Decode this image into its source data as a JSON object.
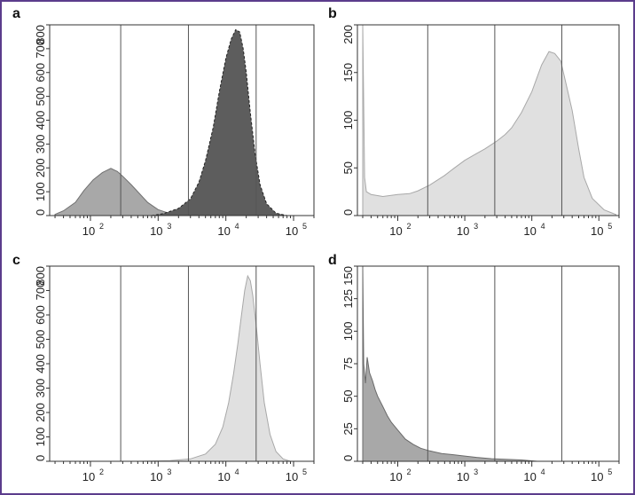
{
  "figure": {
    "frame_color": "#5b3c8c"
  },
  "chart_data": [
    {
      "panel": "a",
      "type": "area",
      "xscale": "log",
      "xlim": [
        25,
        200000
      ],
      "ylim": [
        0,
        800
      ],
      "yticks": [
        0,
        100,
        200,
        300,
        400,
        500,
        600,
        700,
        800
      ],
      "xticks": [
        100,
        1000,
        10000,
        100000
      ],
      "xtick_labels": [
        "10",
        "10",
        "10",
        "10"
      ],
      "xtick_exponents": [
        "2",
        "3",
        "4",
        "5"
      ],
      "gates": [
        280,
        2800,
        28000
      ],
      "series": [
        {
          "fill": "#a8a8a8",
          "stroke": "#707070",
          "dashed": false,
          "x": [
            30,
            40,
            60,
            80,
            110,
            150,
            200,
            250,
            300,
            400,
            500,
            700,
            1000,
            1500,
            2000,
            3000
          ],
          "y": [
            5,
            20,
            55,
            105,
            150,
            180,
            198,
            185,
            165,
            130,
            100,
            55,
            25,
            8,
            3,
            0
          ]
        },
        {
          "fill": "#5d5d5d",
          "stroke": "#222222",
          "dashed": true,
          "x": [
            800,
            1200,
            2000,
            3000,
            4000,
            5000,
            6500,
            8000,
            10000,
            12000,
            14000,
            16000,
            18000,
            20000,
            23000,
            27000,
            32000,
            40000,
            55000,
            80000
          ],
          "y": [
            0,
            8,
            30,
            70,
            140,
            230,
            370,
            520,
            660,
            740,
            780,
            770,
            700,
            600,
            430,
            260,
            130,
            50,
            10,
            0
          ]
        }
      ]
    },
    {
      "panel": "b",
      "type": "area",
      "xscale": "log",
      "xlim": [
        25,
        200000
      ],
      "ylim": [
        0,
        200
      ],
      "yticks": [
        0,
        50,
        100,
        150,
        200
      ],
      "xticks": [
        100,
        1000,
        10000,
        100000
      ],
      "xtick_labels": [
        "10",
        "10",
        "10",
        "10"
      ],
      "xtick_exponents": [
        "2",
        "3",
        "4",
        "5"
      ],
      "gates": [
        280,
        2800,
        28000
      ],
      "series": [
        {
          "fill": "#e0e0e0",
          "stroke": "#a8a8a8",
          "dashed": false,
          "x": [
            30,
            32,
            34,
            40,
            60,
            100,
            150,
            200,
            300,
            500,
            700,
            1000,
            1500,
            2000,
            3000,
            4000,
            5000,
            7000,
            10000,
            14000,
            18000,
            22000,
            27000,
            32000,
            40000,
            50000,
            60000,
            80000,
            120000,
            180000
          ],
          "y": [
            200,
            40,
            25,
            22,
            20,
            22,
            23,
            26,
            32,
            42,
            50,
            58,
            65,
            70,
            78,
            85,
            92,
            108,
            130,
            158,
            172,
            170,
            162,
            140,
            110,
            70,
            40,
            18,
            6,
            1
          ]
        }
      ]
    },
    {
      "panel": "c",
      "type": "area",
      "xscale": "log",
      "xlim": [
        25,
        200000
      ],
      "ylim": [
        0,
        800
      ],
      "yticks": [
        0,
        100,
        200,
        300,
        400,
        500,
        600,
        700,
        800
      ],
      "xticks": [
        100,
        1000,
        10000,
        100000
      ],
      "xtick_labels": [
        "10",
        "10",
        "10",
        "10"
      ],
      "xtick_exponents": [
        "2",
        "3",
        "4",
        "5"
      ],
      "gates": [
        280,
        2800,
        28000
      ],
      "series": [
        {
          "fill": "#e0e0e0",
          "stroke": "#a8a8a8",
          "dashed": false,
          "x": [
            500,
            1500,
            3000,
            5000,
            7000,
            9000,
            11000,
            13000,
            15000,
            17000,
            19000,
            21000,
            23000,
            25000,
            28000,
            32000,
            37000,
            45000,
            55000,
            70000,
            90000
          ],
          "y": [
            0,
            3,
            10,
            30,
            70,
            140,
            240,
            360,
            480,
            600,
            700,
            760,
            740,
            680,
            560,
            400,
            240,
            110,
            40,
            10,
            0
          ]
        }
      ]
    },
    {
      "panel": "d",
      "type": "area",
      "xscale": "log",
      "xlim": [
        25,
        200000
      ],
      "ylim": [
        0,
        150
      ],
      "yticks": [
        0,
        25,
        50,
        75,
        100,
        125,
        150
      ],
      "xticks": [
        100,
        1000,
        10000,
        100000
      ],
      "xtick_labels": [
        "10",
        "10",
        "10",
        "10"
      ],
      "xtick_exponents": [
        "2",
        "3",
        "4",
        "5"
      ],
      "gates": [
        280,
        2800,
        28000
      ],
      "series": [
        {
          "fill": "#a8a8a8",
          "stroke": "#6a6a6a",
          "dashed": false,
          "x": [
            30,
            31,
            33,
            35,
            38,
            42,
            46,
            50,
            60,
            70,
            80,
            100,
            130,
            170,
            220,
            300,
            450,
            700,
            1000,
            1500,
            2500,
            4000,
            7000,
            12000
          ],
          "y": [
            150,
            75,
            60,
            80,
            68,
            62,
            55,
            50,
            42,
            35,
            30,
            24,
            17,
            13,
            10,
            8,
            6,
            5,
            4,
            3,
            2,
            1.5,
            1,
            0
          ]
        }
      ]
    }
  ]
}
